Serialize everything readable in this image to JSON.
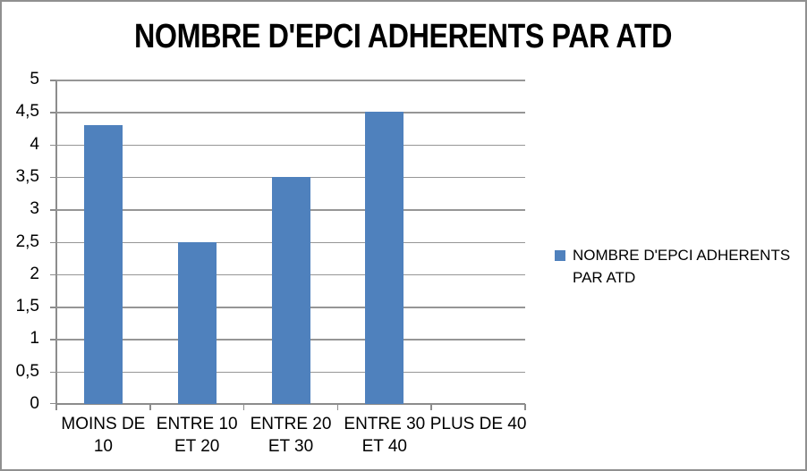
{
  "chart_data": {
    "type": "bar",
    "title": "NOMBRE D'EPCI ADHERENTS PAR ATD",
    "categories": [
      "MOINS DE 10",
      "ENTRE 10 ET 20",
      "ENTRE 20 ET 30",
      "ENTRE 30 ET 40",
      "PLUS DE 40"
    ],
    "category_label_lines": [
      [
        "MOINS DE",
        "10"
      ],
      [
        "ENTRE 10",
        "ET 20"
      ],
      [
        "ENTRE 20",
        "ET 30"
      ],
      [
        "ENTRE 30",
        "ET 40"
      ],
      [
        "PLUS DE 40"
      ]
    ],
    "series": [
      {
        "name": "NOMBRE D'EPCI ADHERENTS PAR ATD",
        "values": [
          4.3,
          2.5,
          3.5,
          4.5,
          0
        ]
      }
    ],
    "xlabel": "",
    "ylabel": "",
    "ylim": [
      0,
      5
    ],
    "ytick_step": 0.5,
    "ytick_labels_top_to_bottom": [
      "5",
      "4,5",
      "4",
      "3,5",
      "3",
      "2,5",
      "2",
      "1,5",
      "1",
      "0,5",
      "0"
    ],
    "decimal_separator": ",",
    "grid": true,
    "legend_position": "right",
    "legend_label": "NOMBRE D'EPCI ADHERENTS PAR ATD",
    "colors": {
      "bar": "#4F81BD",
      "gridline": "#969696",
      "axis": "#8C8C8C",
      "text": "#000000",
      "border": "#909090",
      "background": "#FFFFFF"
    }
  }
}
